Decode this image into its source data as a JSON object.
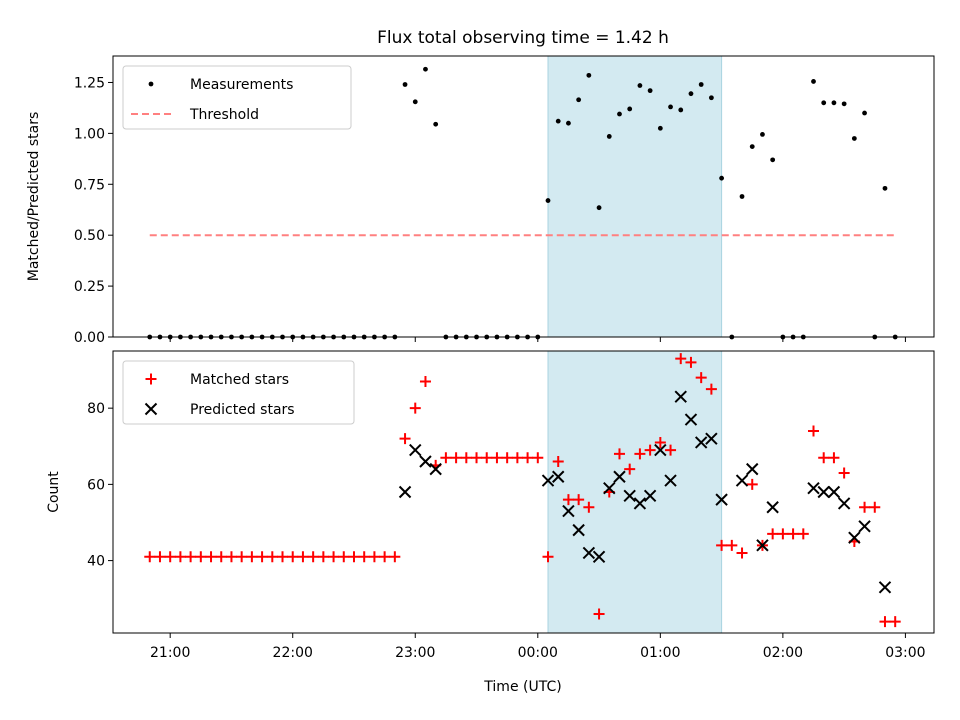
{
  "figure_title": "Flux total observing time = 1.42 h",
  "x_label": "Time (UTC)",
  "chart_data": [
    {
      "type": "scatter",
      "panel": "top",
      "ylabel": "Matched/Predicted stars",
      "xlim": [
        "20:32",
        "03:14"
      ],
      "ylim": [
        0,
        1.38
      ],
      "y_ticks": [
        "0.00",
        "0.25",
        "0.50",
        "0.75",
        "1.00",
        "1.25"
      ],
      "y_tick_values": [
        0,
        0.25,
        0.5,
        0.75,
        1.0,
        1.25
      ],
      "x_ticks": [
        "21:00",
        "22:00",
        "23:00",
        "00:00",
        "01:00",
        "02:00",
        "03:00"
      ],
      "x_tick_values": [
        "21:00",
        "22:00",
        "23:00",
        "00:00",
        "01:00",
        "02:00",
        "03:00"
      ],
      "shaded_span": [
        "00:05",
        "01:30"
      ],
      "legend_placement": "top-left",
      "series": [
        {
          "name": "Measurements",
          "marker": "dot",
          "color": "#000000",
          "points": [
            [
              "20:50",
              0
            ],
            [
              "20:55",
              0
            ],
            [
              "21:00",
              0
            ],
            [
              "21:05",
              0
            ],
            [
              "21:10",
              0
            ],
            [
              "21:15",
              0
            ],
            [
              "21:20",
              0
            ],
            [
              "21:25",
              0
            ],
            [
              "21:30",
              0
            ],
            [
              "21:35",
              0
            ],
            [
              "21:40",
              0
            ],
            [
              "21:45",
              0
            ],
            [
              "21:50",
              0
            ],
            [
              "21:55",
              0
            ],
            [
              "22:00",
              0
            ],
            [
              "22:05",
              0
            ],
            [
              "22:10",
              0
            ],
            [
              "22:15",
              0
            ],
            [
              "22:20",
              0
            ],
            [
              "22:25",
              0
            ],
            [
              "22:30",
              0
            ],
            [
              "22:35",
              0
            ],
            [
              "22:40",
              0
            ],
            [
              "22:45",
              0
            ],
            [
              "22:50",
              0
            ],
            [
              "22:55",
              1.24
            ],
            [
              "23:00",
              1.155
            ],
            [
              "23:05",
              1.315
            ],
            [
              "23:10",
              1.045
            ],
            [
              "23:15",
              0
            ],
            [
              "23:20",
              0
            ],
            [
              "23:25",
              0
            ],
            [
              "23:30",
              0
            ],
            [
              "23:35",
              0
            ],
            [
              "23:40",
              0
            ],
            [
              "23:45",
              0
            ],
            [
              "23:50",
              0
            ],
            [
              "23:55",
              0
            ],
            [
              "00:00",
              0
            ],
            [
              "00:05",
              0.67
            ],
            [
              "00:10",
              1.06
            ],
            [
              "00:15",
              1.05
            ],
            [
              "00:20",
              1.165
            ],
            [
              "00:25",
              1.285
            ],
            [
              "00:30",
              0.635
            ],
            [
              "00:35",
              0.985
            ],
            [
              "00:40",
              1.095
            ],
            [
              "00:45",
              1.12
            ],
            [
              "00:50",
              1.235
            ],
            [
              "00:55",
              1.21
            ],
            [
              "01:00",
              1.025
            ],
            [
              "01:05",
              1.13
            ],
            [
              "01:10",
              1.115
            ],
            [
              "01:15",
              1.195
            ],
            [
              "01:20",
              1.24
            ],
            [
              "01:25",
              1.175
            ],
            [
              "01:30",
              0.78
            ],
            [
              "01:35",
              0
            ],
            [
              "01:40",
              0.69
            ],
            [
              "01:45",
              0.935
            ],
            [
              "01:50",
              0.995
            ],
            [
              "01:55",
              0.87
            ],
            [
              "02:00",
              0
            ],
            [
              "02:05",
              0
            ],
            [
              "02:10",
              0
            ],
            [
              "02:15",
              1.255
            ],
            [
              "02:20",
              1.15
            ],
            [
              "02:25",
              1.15
            ],
            [
              "02:30",
              1.145
            ],
            [
              "02:35",
              0.975
            ],
            [
              "02:40",
              1.1
            ],
            [
              "02:45",
              0
            ],
            [
              "02:50",
              0.73
            ],
            [
              "02:55",
              0
            ]
          ]
        },
        {
          "name": "Threshold",
          "style": "dashed",
          "color": "#ff8080",
          "points": [
            [
              "20:50",
              0.5
            ],
            [
              "02:55",
              0.5
            ]
          ]
        }
      ]
    },
    {
      "type": "scatter",
      "panel": "bottom",
      "ylabel": "Count",
      "xlabel": "Time (UTC)",
      "xlim": [
        "20:32",
        "03:14"
      ],
      "ylim": [
        21,
        95
      ],
      "y_ticks": [
        "40",
        "60",
        "80"
      ],
      "y_tick_values": [
        40,
        60,
        80
      ],
      "x_ticks": [
        "21:00",
        "22:00",
        "23:00",
        "00:00",
        "01:00",
        "02:00",
        "03:00"
      ],
      "x_tick_values": [
        "21:00",
        "22:00",
        "23:00",
        "00:00",
        "01:00",
        "02:00",
        "03:00"
      ],
      "shaded_span": [
        "00:05",
        "01:30"
      ],
      "legend_placement": "top-left",
      "series": [
        {
          "name": "Matched stars",
          "marker": "plus",
          "color": "#ff0000",
          "points": [
            [
              "20:50",
              41
            ],
            [
              "20:55",
              41
            ],
            [
              "21:00",
              41
            ],
            [
              "21:05",
              41
            ],
            [
              "21:10",
              41
            ],
            [
              "21:15",
              41
            ],
            [
              "21:20",
              41
            ],
            [
              "21:25",
              41
            ],
            [
              "21:30",
              41
            ],
            [
              "21:35",
              41
            ],
            [
              "21:40",
              41
            ],
            [
              "21:45",
              41
            ],
            [
              "21:50",
              41
            ],
            [
              "21:55",
              41
            ],
            [
              "22:00",
              41
            ],
            [
              "22:05",
              41
            ],
            [
              "22:10",
              41
            ],
            [
              "22:15",
              41
            ],
            [
              "22:20",
              41
            ],
            [
              "22:25",
              41
            ],
            [
              "22:30",
              41
            ],
            [
              "22:35",
              41
            ],
            [
              "22:40",
              41
            ],
            [
              "22:45",
              41
            ],
            [
              "22:50",
              41
            ],
            [
              "22:55",
              72
            ],
            [
              "23:00",
              80
            ],
            [
              "23:05",
              87
            ],
            [
              "23:10",
              65
            ],
            [
              "23:15",
              67
            ],
            [
              "23:20",
              67
            ],
            [
              "23:25",
              67
            ],
            [
              "23:30",
              67
            ],
            [
              "23:35",
              67
            ],
            [
              "23:40",
              67
            ],
            [
              "23:45",
              67
            ],
            [
              "23:50",
              67
            ],
            [
              "23:55",
              67
            ],
            [
              "00:00",
              67
            ],
            [
              "00:05",
              41
            ],
            [
              "00:10",
              66
            ],
            [
              "00:15",
              56
            ],
            [
              "00:20",
              56
            ],
            [
              "00:25",
              54
            ],
            [
              "00:30",
              26
            ],
            [
              "00:35",
              58
            ],
            [
              "00:40",
              68
            ],
            [
              "00:45",
              64
            ],
            [
              "00:50",
              68
            ],
            [
              "00:55",
              69
            ],
            [
              "01:00",
              71
            ],
            [
              "01:05",
              69
            ],
            [
              "01:10",
              93
            ],
            [
              "01:15",
              92
            ],
            [
              "01:20",
              88
            ],
            [
              "01:25",
              85
            ],
            [
              "01:30",
              44
            ],
            [
              "01:35",
              44
            ],
            [
              "01:40",
              42
            ],
            [
              "01:45",
              60
            ],
            [
              "01:50",
              44
            ],
            [
              "01:55",
              47
            ],
            [
              "02:00",
              47
            ],
            [
              "02:05",
              47
            ],
            [
              "02:10",
              47
            ],
            [
              "02:15",
              74
            ],
            [
              "02:20",
              67
            ],
            [
              "02:25",
              67
            ],
            [
              "02:30",
              63
            ],
            [
              "02:35",
              45
            ],
            [
              "02:40",
              54
            ],
            [
              "02:45",
              54
            ],
            [
              "02:50",
              24
            ],
            [
              "02:55",
              24
            ]
          ]
        },
        {
          "name": "Predicted stars",
          "marker": "x",
          "color": "#000000",
          "points": [
            [
              "22:55",
              58
            ],
            [
              "23:00",
              69
            ],
            [
              "23:05",
              66
            ],
            [
              "23:10",
              64
            ],
            [
              "00:05",
              61
            ],
            [
              "00:10",
              62
            ],
            [
              "00:15",
              53
            ],
            [
              "00:20",
              48
            ],
            [
              "00:25",
              42
            ],
            [
              "00:30",
              41
            ],
            [
              "00:35",
              59
            ],
            [
              "00:40",
              62
            ],
            [
              "00:45",
              57
            ],
            [
              "00:50",
              55
            ],
            [
              "00:55",
              57
            ],
            [
              "01:00",
              69
            ],
            [
              "01:05",
              61
            ],
            [
              "01:10",
              83
            ],
            [
              "01:15",
              77
            ],
            [
              "01:20",
              71
            ],
            [
              "01:25",
              72
            ],
            [
              "01:30",
              56
            ],
            [
              "01:40",
              61
            ],
            [
              "01:45",
              64
            ],
            [
              "01:50",
              44
            ],
            [
              "01:55",
              54
            ],
            [
              "02:15",
              59
            ],
            [
              "02:20",
              58
            ],
            [
              "02:25",
              58
            ],
            [
              "02:30",
              55
            ],
            [
              "02:35",
              46
            ],
            [
              "02:40",
              49
            ],
            [
              "02:50",
              33
            ]
          ]
        }
      ]
    }
  ]
}
